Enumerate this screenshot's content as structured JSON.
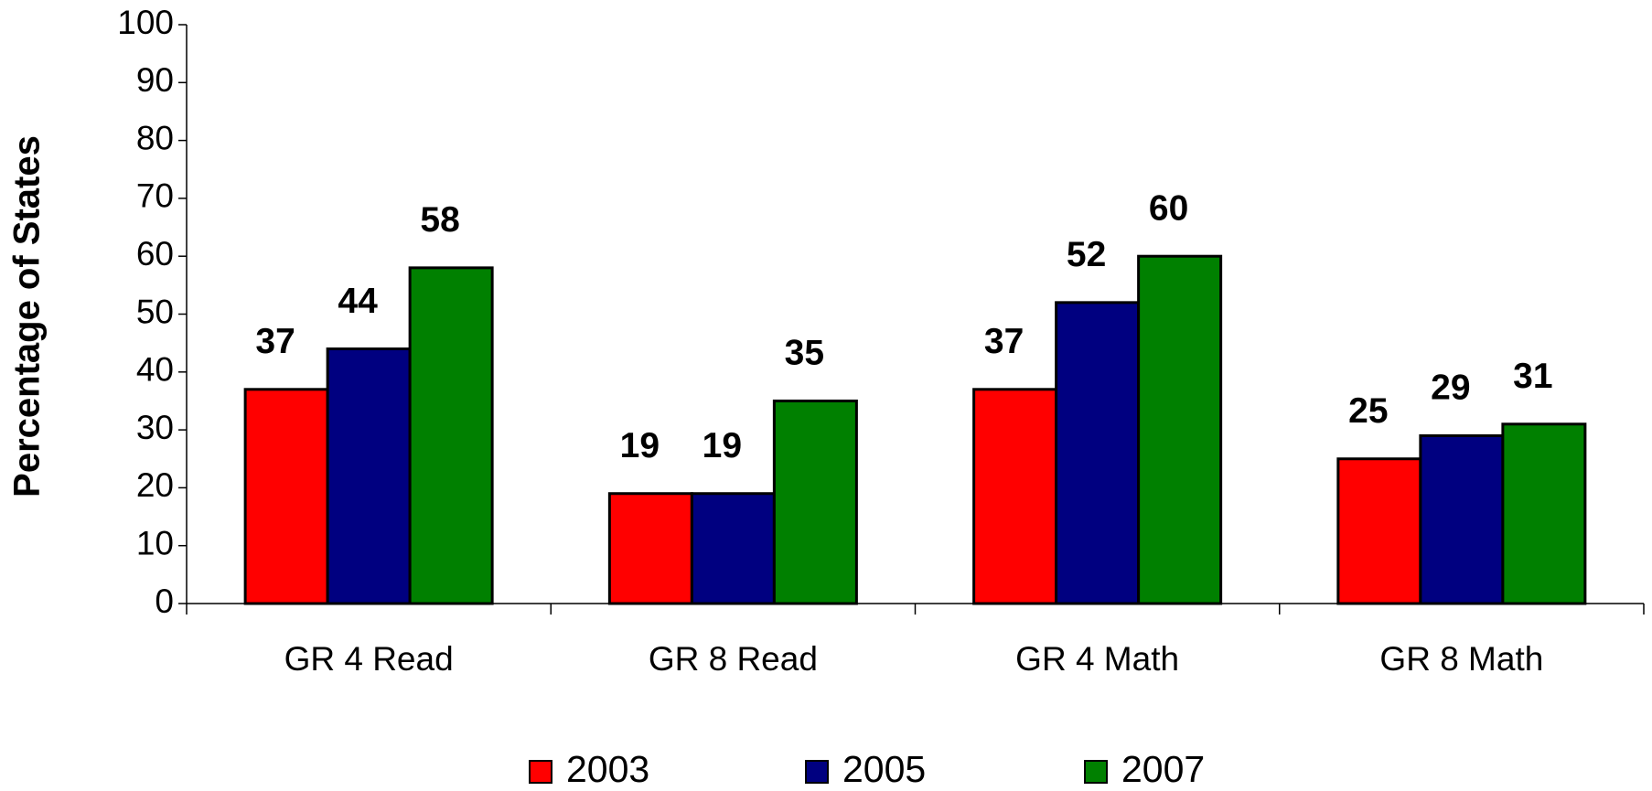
{
  "chart_data": {
    "type": "bar",
    "y_label": "Percentage of States",
    "categories": [
      "GR 4 Read",
      "GR 8 Read",
      "GR 4 Math",
      "GR 8 Math"
    ],
    "series": [
      {
        "name": "2003",
        "color": "#ff0000",
        "values": [
          37,
          19,
          37,
          25
        ]
      },
      {
        "name": "2005",
        "color": "#000080",
        "values": [
          44,
          19,
          52,
          29
        ]
      },
      {
        "name": "2007",
        "color": "#008000",
        "values": [
          58,
          35,
          60,
          31
        ]
      }
    ],
    "ylim": [
      0,
      100
    ],
    "yticks": [
      0,
      10,
      20,
      30,
      40,
      50,
      60,
      70,
      80,
      90,
      100
    ],
    "grid": false,
    "legend": "bottom"
  }
}
